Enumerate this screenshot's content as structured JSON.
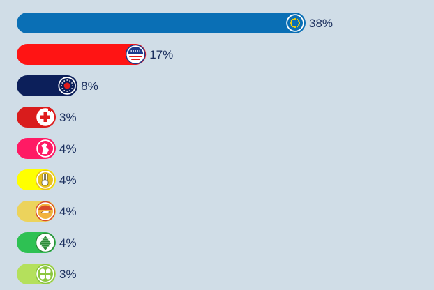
{
  "chart_data": {
    "type": "bar",
    "orientation": "horizontal",
    "categories": [
      "",
      "",
      "",
      "",
      "",
      "",
      "",
      "",
      ""
    ],
    "values": [
      38,
      17,
      8,
      3,
      4,
      4,
      4,
      4,
      3
    ],
    "value_labels": [
      "38%",
      "17%",
      "8%",
      "3%",
      "4%",
      "4%",
      "4%",
      "4%",
      "3%"
    ],
    "colors": [
      "#0a6fb5",
      "#ff1414",
      "#0c1f5a",
      "#d91c1c",
      "#ff1a64",
      "#ffff00",
      "#ecd35c",
      "#2ec153",
      "#b4e05c"
    ],
    "icons": [
      "eu-stars-logo-icon",
      "usa-flag-seal-logo-icon",
      "eu-stars-heart-logo-icon",
      "red-cross-logo-icon",
      "rearing-horse-logo-icon",
      "peace-hand-logo-icon",
      "bird-sunrise-logo-icon",
      "pine-cone-logo-icon",
      "four-leaf-logo-icon"
    ],
    "icon_colors": [
      "#0a6fb5",
      "#1b3a8c",
      "#0c1f5a",
      "#e01b1b",
      "#ff1a64",
      "#e8c020",
      "#d84a2a",
      "#2e8b3a",
      "#8cc63f"
    ],
    "xlim": [
      0,
      38
    ],
    "grid": false,
    "legend": "none",
    "title": "",
    "xlabel": "",
    "ylabel": ""
  }
}
